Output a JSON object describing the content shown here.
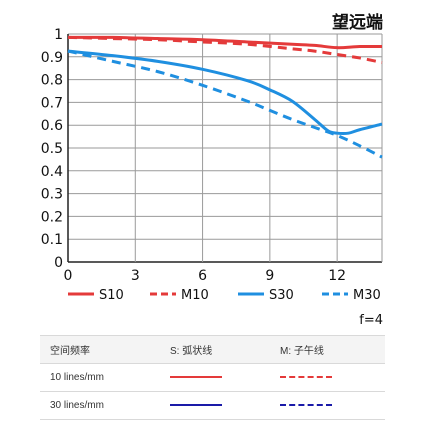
{
  "colors": {
    "red": "#e43a3a",
    "blue": "#1f8fe0",
    "navy": "#1a1aa8"
  },
  "chart_data": {
    "type": "line",
    "title": "望远端",
    "aperture_label": "f=4",
    "xlim": [
      0,
      14
    ],
    "ylim": [
      0,
      1
    ],
    "x_ticks": [
      "0",
      "3",
      "6",
      "9",
      "12",
      "15"
    ],
    "x_ticks_shown": [
      "0",
      "3",
      "6",
      "9",
      "12"
    ],
    "x_tick_values": [
      0,
      3,
      6,
      9,
      12
    ],
    "y_tick_labels": [
      "0",
      "0.1",
      "0.2",
      "0.3",
      "0.4",
      "0.5",
      "0.6",
      "0.7",
      "0.8",
      "0.9",
      "1"
    ],
    "y_tick_values": [
      0,
      0.1,
      0.2,
      0.3,
      0.4,
      0.5,
      0.6,
      0.7,
      0.8,
      0.9,
      1
    ],
    "grid": true,
    "legend_position": "bottom",
    "series": [
      {
        "name": "S10",
        "color": "red",
        "dash": false,
        "x": [
          0,
          2,
          4,
          6,
          8,
          10,
          11,
          12,
          13,
          14
        ],
        "y": [
          0.985,
          0.985,
          0.98,
          0.975,
          0.965,
          0.955,
          0.95,
          0.94,
          0.945,
          0.945
        ]
      },
      {
        "name": "M10",
        "color": "red",
        "dash": true,
        "x": [
          0,
          2,
          4,
          6,
          8,
          10,
          11,
          12,
          13,
          14
        ],
        "y": [
          0.985,
          0.98,
          0.975,
          0.965,
          0.955,
          0.935,
          0.925,
          0.91,
          0.895,
          0.875
        ]
      },
      {
        "name": "S30",
        "color": "blue",
        "dash": false,
        "x": [
          0,
          2,
          4,
          6,
          8,
          9,
          10,
          11,
          11.6,
          12,
          12.5,
          13,
          14
        ],
        "y": [
          0.925,
          0.905,
          0.88,
          0.845,
          0.795,
          0.755,
          0.705,
          0.625,
          0.575,
          0.565,
          0.565,
          0.58,
          0.605
        ]
      },
      {
        "name": "M30",
        "color": "blue",
        "dash": true,
        "x": [
          0,
          2,
          4,
          6,
          8,
          9,
          10,
          11,
          12,
          13,
          14
        ],
        "y": [
          0.925,
          0.88,
          0.835,
          0.775,
          0.705,
          0.665,
          0.625,
          0.59,
          0.555,
          0.51,
          0.46
        ]
      }
    ]
  },
  "table": {
    "header": [
      "空间频率",
      "S: 弧状线",
      "M: 子午线"
    ],
    "rows": [
      {
        "label": "10 lines/mm",
        "s_color": "red",
        "m_color": "red"
      },
      {
        "label": "30 lines/mm",
        "s_color": "navy",
        "m_color": "navy"
      }
    ]
  }
}
